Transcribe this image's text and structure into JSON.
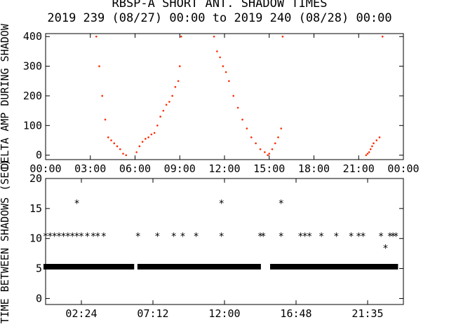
{
  "title_line1": "RBSP-A SHORT ANT. SHADOW TIMES",
  "title_line2": "2019 239 (08/27) 00:00 to 2019 240 (08/28) 00:00",
  "colors": {
    "points": "#ff2a00",
    "axes": "#000000",
    "background": "#ffffff"
  },
  "chart_data": [
    {
      "type": "scatter",
      "panel": "top",
      "ylabel": "DELTA AMP DURING SHADOW",
      "xlim": [
        0,
        24
      ],
      "ylim": [
        -15,
        410
      ],
      "x_ticks": [
        "00:00",
        "03:00",
        "06:00",
        "09:00",
        "12:00",
        "15:00",
        "18:00",
        "21:00",
        "00:00"
      ],
      "y_ticks": [
        "0",
        "100",
        "200",
        "300",
        "400"
      ],
      "grid": false,
      "series": [
        {
          "color": "#ff2a00",
          "x": [
            3.4,
            3.6,
            3.8,
            4.0,
            4.2,
            4.4,
            4.6,
            4.8,
            5.0,
            5.2,
            5.4,
            6.1,
            6.3,
            6.5,
            6.7,
            6.9,
            7.1,
            7.3,
            7.5,
            7.7,
            7.9,
            8.1,
            8.3,
            8.5,
            8.7,
            8.9,
            9.0,
            9.1,
            11.3,
            11.5,
            11.7,
            11.9,
            12.1,
            12.3,
            12.6,
            12.9,
            13.2,
            13.5,
            13.8,
            14.1,
            14.4,
            14.7,
            14.9,
            15.0,
            15.2,
            15.4,
            15.6,
            15.8,
            15.9,
            21.5,
            21.6,
            21.7,
            21.8,
            21.9,
            22.0,
            22.2,
            22.4,
            22.6
          ],
          "y": [
            400,
            300,
            200,
            120,
            60,
            50,
            40,
            30,
            20,
            5,
            0,
            10,
            30,
            45,
            55,
            60,
            70,
            75,
            100,
            130,
            150,
            170,
            180,
            200,
            230,
            250,
            300,
            400,
            400,
            350,
            330,
            300,
            280,
            250,
            200,
            160,
            120,
            90,
            60,
            40,
            20,
            10,
            0,
            5,
            20,
            40,
            60,
            90,
            400,
            0,
            5,
            10,
            20,
            30,
            40,
            50,
            60,
            400
          ]
        }
      ]
    },
    {
      "type": "scatter",
      "panel": "bottom",
      "ylabel": "TIME BETWEEN SHADOWS (SEC)",
      "xlim": [
        0,
        24
      ],
      "ylim": [
        -1,
        20
      ],
      "x_ticks": [
        "02:24",
        "07:12",
        "12:00",
        "16:48",
        "21:35"
      ],
      "y_ticks": [
        "0",
        "5",
        "10",
        "15",
        "20"
      ],
      "grid": false,
      "series": [
        {
          "color": "#000000",
          "marker": "*",
          "x": [
            0.0,
            0.3,
            0.6,
            0.9,
            1.2,
            1.5,
            1.8,
            2.1,
            2.4,
            2.8,
            3.2,
            3.5,
            3.9,
            6.2,
            7.5,
            8.6,
            9.2,
            10.1,
            11.8,
            14.4,
            14.6,
            15.8,
            17.1,
            17.4,
            17.7,
            18.5,
            19.5,
            20.5,
            21.0,
            21.3,
            22.5,
            23.1,
            23.3,
            23.5
          ],
          "y": [
            10.5,
            10.5,
            10.5,
            10.5,
            10.5,
            10.5,
            10.5,
            10.5,
            10.5,
            10.5,
            10.5,
            10.5,
            10.5,
            10.5,
            10.5,
            10.5,
            10.5,
            10.5,
            10.5,
            10.5,
            10.5,
            10.5,
            10.5,
            10.5,
            10.5,
            10.5,
            10.5,
            10.5,
            10.5,
            10.5,
            10.5,
            10.5,
            10.5,
            10.5
          ]
        },
        {
          "color": "#000000",
          "marker": "*",
          "x": [
            2.1,
            11.8,
            15.8,
            22.8
          ],
          "y": [
            16,
            16,
            16,
            8.5
          ]
        },
        {
          "color": "#000000",
          "marker": "*",
          "x_ranges": [
            [
              0.0,
              5.8
            ],
            [
              6.3,
              14.3
            ],
            [
              15.2,
              23.5
            ]
          ],
          "y": 5.3
        }
      ]
    }
  ]
}
